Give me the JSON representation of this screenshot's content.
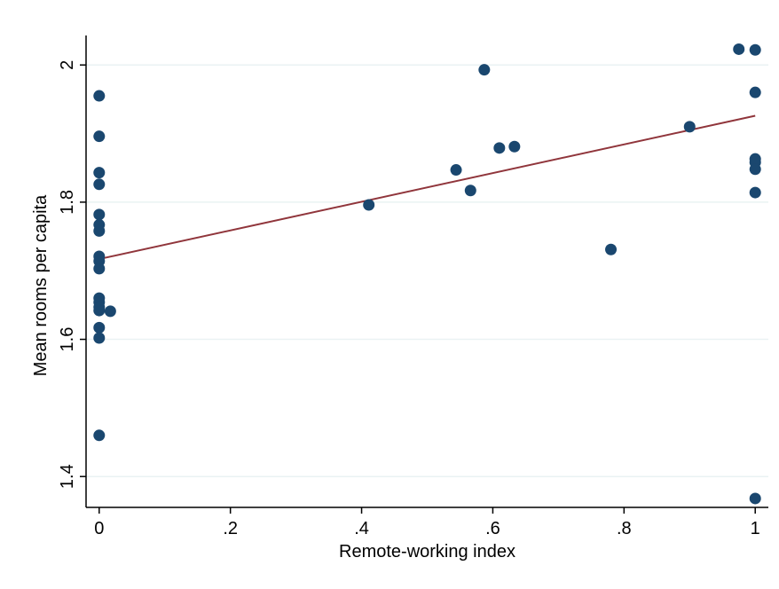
{
  "chart_data": {
    "type": "scatter",
    "xlabel": "Remote-working index",
    "ylabel": "Mean rooms per capita",
    "xlim": [
      -0.02,
      1.02
    ],
    "ylim": [
      1.355,
      2.043
    ],
    "x_ticks": [
      {
        "value": 0,
        "label": "0"
      },
      {
        "value": 0.2,
        "label": ".2"
      },
      {
        "value": 0.4,
        "label": ".4"
      },
      {
        "value": 0.6,
        "label": ".6"
      },
      {
        "value": 0.8,
        "label": ".8"
      },
      {
        "value": 1,
        "label": "1"
      }
    ],
    "y_ticks": [
      {
        "value": 1.4,
        "label": "1.4"
      },
      {
        "value": 1.6,
        "label": "1.6"
      },
      {
        "value": 1.8,
        "label": "1.8"
      },
      {
        "value": 2.0,
        "label": "2"
      }
    ],
    "grid": "horizontal",
    "legend": "none",
    "series": [
      {
        "marker_color": "#1a476f",
        "points": [
          [
            0.0,
            1.955
          ],
          [
            0.0,
            1.896
          ],
          [
            0.0,
            1.843
          ],
          [
            0.0,
            1.826
          ],
          [
            0.0,
            1.782
          ],
          [
            0.0,
            1.767
          ],
          [
            0.0,
            1.758
          ],
          [
            0.0,
            1.721
          ],
          [
            0.0,
            1.714
          ],
          [
            0.0,
            1.703
          ],
          [
            0.0,
            1.66
          ],
          [
            0.0,
            1.654
          ],
          [
            0.0,
            1.647
          ],
          [
            0.0,
            1.642
          ],
          [
            0.0,
            1.617
          ],
          [
            0.0,
            1.602
          ],
          [
            0.0,
            1.46
          ],
          [
            0.017,
            1.641
          ],
          [
            0.411,
            1.796
          ],
          [
            0.544,
            1.847
          ],
          [
            0.566,
            1.817
          ],
          [
            0.587,
            1.993
          ],
          [
            0.61,
            1.879
          ],
          [
            0.633,
            1.881
          ],
          [
            0.78,
            1.731
          ],
          [
            0.9,
            1.91
          ],
          [
            0.975,
            2.023
          ],
          [
            1.0,
            2.022
          ],
          [
            1.0,
            1.96
          ],
          [
            1.0,
            1.863
          ],
          [
            1.0,
            1.858
          ],
          [
            1.0,
            1.848
          ],
          [
            1.0,
            1.814
          ],
          [
            1.0,
            1.368
          ]
        ]
      }
    ],
    "fit_line": {
      "color": "#90353b",
      "x": [
        0,
        1
      ],
      "y": [
        1.717,
        1.926
      ]
    },
    "background": "#ffffff",
    "grid_color": "#eaf2f3"
  }
}
